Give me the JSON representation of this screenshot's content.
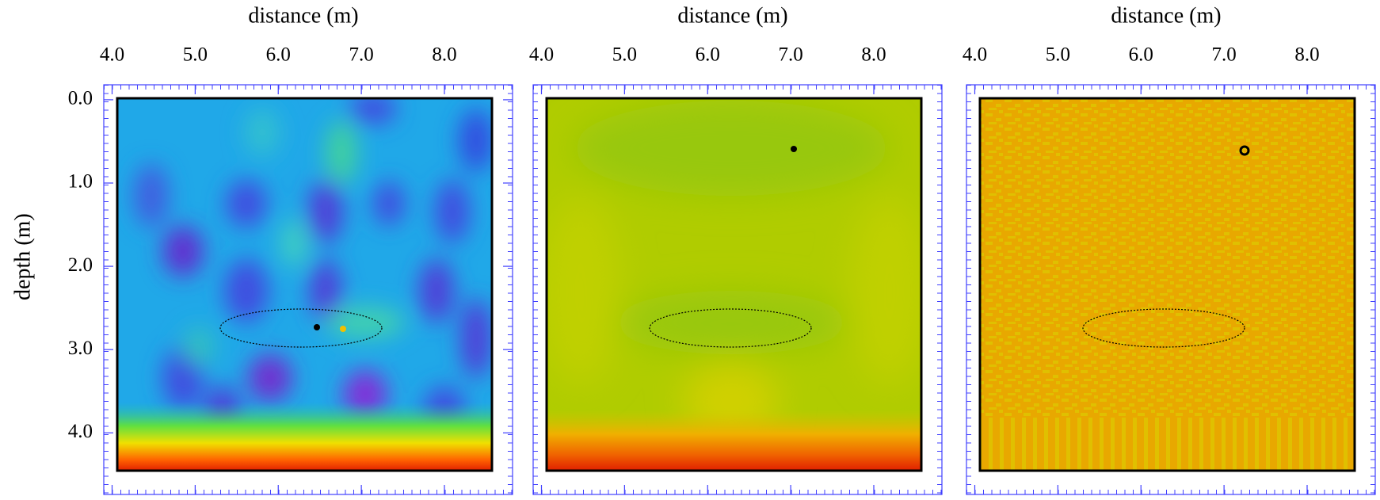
{
  "chart_data": [
    {
      "type": "heatmap",
      "xlabel": "distance (m)",
      "xlim": [
        3.9,
        8.82
      ],
      "xticks": [
        {
          "value": 4,
          "label": "4.0"
        },
        {
          "value": 5,
          "label": "5.0"
        },
        {
          "value": 6,
          "label": "6.0"
        },
        {
          "value": 7,
          "label": "7.0"
        },
        {
          "value": 8,
          "label": "8.0"
        }
      ],
      "ylabel": "depth (m)",
      "ylim": [
        -0.18,
        4.74
      ],
      "yticks": [
        {
          "value": 0,
          "label": "0.0"
        },
        {
          "value": 1,
          "label": "1.0"
        },
        {
          "value": 2,
          "label": "2.0"
        },
        {
          "value": 3,
          "label": "3.0"
        },
        {
          "value": 4,
          "label": "4.0"
        }
      ]
    },
    {
      "type": "heatmap",
      "xlabel": "distance (m)",
      "xlim": [
        3.9,
        8.82
      ],
      "xticks": [
        {
          "value": 4,
          "label": "4.0"
        },
        {
          "value": 5,
          "label": "5.0"
        },
        {
          "value": 6,
          "label": "6.0"
        },
        {
          "value": 7,
          "label": "7.0"
        },
        {
          "value": 8,
          "label": "8.0"
        }
      ]
    },
    {
      "type": "heatmap",
      "xlabel": "distance (m)",
      "xlim": [
        3.9,
        8.82
      ],
      "xticks": [
        {
          "value": 4,
          "label": "4.0"
        },
        {
          "value": 5,
          "label": "5.0"
        },
        {
          "value": 6,
          "label": "6.0"
        },
        {
          "value": 7,
          "label": "7.0"
        },
        {
          "value": 8,
          "label": "8.0"
        }
      ]
    }
  ]
}
